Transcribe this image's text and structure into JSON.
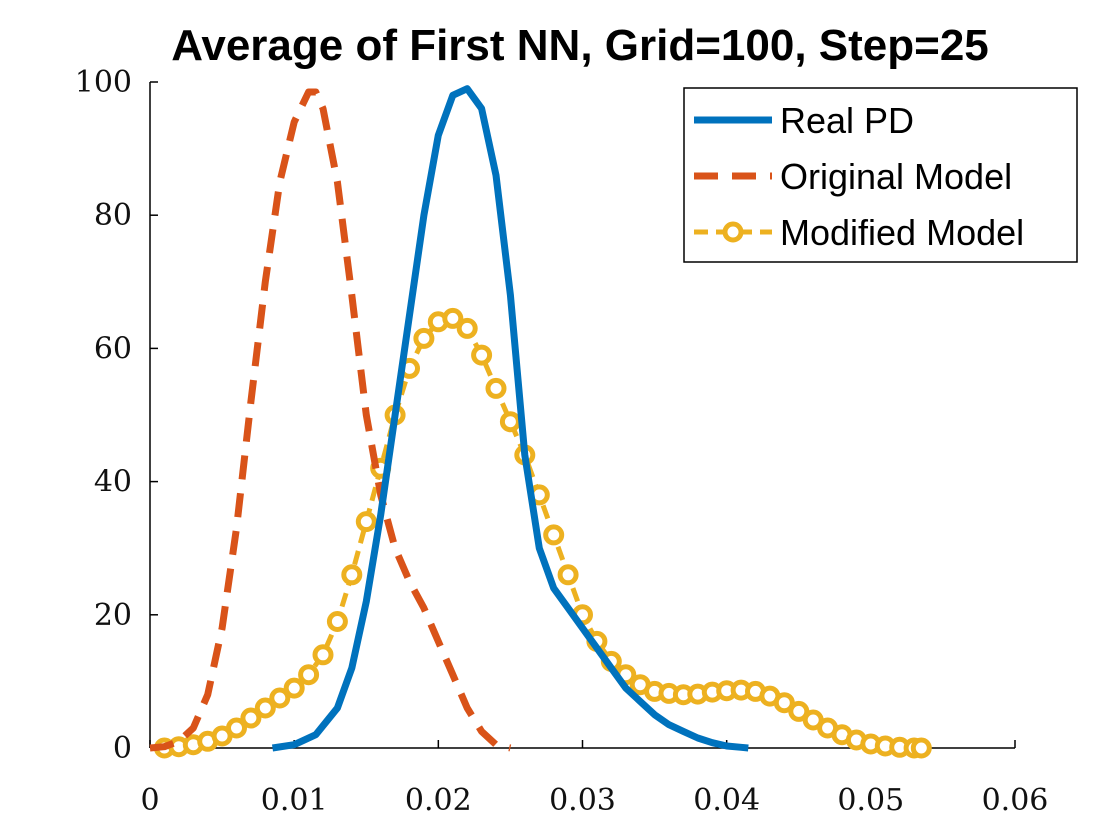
{
  "chart_data": {
    "type": "line",
    "title": "Average of First NN, Grid=100, Step=25",
    "xlabel": "",
    "ylabel": "",
    "xlim": [
      0,
      0.06
    ],
    "ylim": [
      0,
      100
    ],
    "xticks": [
      0,
      0.01,
      0.02,
      0.03,
      0.04,
      0.05,
      0.06
    ],
    "xtick_labels": [
      "0",
      "0.01",
      "0.02",
      "0.03",
      "0.04",
      "0.05",
      "0.06"
    ],
    "yticks": [
      0,
      20,
      40,
      60,
      80,
      100
    ],
    "ytick_labels": [
      "0",
      "20",
      "40",
      "60",
      "80",
      "100"
    ],
    "grid": false,
    "legend_position": "top-right",
    "series": [
      {
        "name": "Real PD",
        "color": "#0072BD",
        "style": "solid",
        "x": [
          0.0085,
          0.01,
          0.0115,
          0.013,
          0.014,
          0.015,
          0.016,
          0.017,
          0.018,
          0.019,
          0.02,
          0.021,
          0.022,
          0.023,
          0.024,
          0.025,
          0.026,
          0.027,
          0.028,
          0.029,
          0.03,
          0.031,
          0.032,
          0.033,
          0.034,
          0.035,
          0.036,
          0.037,
          0.038,
          0.039,
          0.04,
          0.041,
          0.0415
        ],
        "y": [
          0,
          0.5,
          2,
          6,
          12,
          22,
          35,
          50,
          65,
          80,
          92,
          98,
          99,
          96,
          86,
          68,
          44,
          30,
          24,
          21,
          18,
          15,
          12,
          9,
          7,
          5,
          3.5,
          2.5,
          1.5,
          0.8,
          0.3,
          0.1,
          0
        ]
      },
      {
        "name": "Original Model",
        "color": "#D95319",
        "style": "dashed",
        "x": [
          0,
          0.001,
          0.002,
          0.003,
          0.004,
          0.005,
          0.006,
          0.007,
          0.008,
          0.009,
          0.01,
          0.011,
          0.0115,
          0.012,
          0.013,
          0.014,
          0.015,
          0.016,
          0.017,
          0.018,
          0.019,
          0.02,
          0.021,
          0.022,
          0.023,
          0.024,
          0.025
        ],
        "y": [
          0,
          0.2,
          1,
          3,
          8,
          18,
          33,
          52,
          70,
          85,
          94,
          98.5,
          98.5,
          96,
          85,
          68,
          50,
          38,
          30,
          25,
          21,
          16,
          11,
          6,
          2.5,
          0.5,
          0
        ]
      },
      {
        "name": "Modified Model",
        "color": "#EDB120",
        "style": "dashed-circle",
        "x": [
          0.001,
          0.002,
          0.003,
          0.004,
          0.005,
          0.006,
          0.007,
          0.008,
          0.009,
          0.01,
          0.011,
          0.012,
          0.013,
          0.014,
          0.015,
          0.016,
          0.017,
          0.018,
          0.019,
          0.02,
          0.021,
          0.022,
          0.023,
          0.024,
          0.025,
          0.026,
          0.027,
          0.028,
          0.029,
          0.03,
          0.031,
          0.032,
          0.033,
          0.034,
          0.035,
          0.036,
          0.037,
          0.038,
          0.039,
          0.04,
          0.041,
          0.042,
          0.043,
          0.044,
          0.045,
          0.046,
          0.047,
          0.048,
          0.049,
          0.05,
          0.051,
          0.052,
          0.053,
          0.0535
        ],
        "y": [
          0,
          0.2,
          0.5,
          1,
          1.8,
          3,
          4.5,
          6,
          7.5,
          9,
          11,
          14,
          19,
          26,
          34,
          42,
          50,
          57,
          61.5,
          64,
          64.5,
          63,
          59,
          54,
          49,
          44,
          38,
          32,
          26,
          20,
          16,
          13,
          11,
          9.5,
          8.5,
          8.2,
          8.0,
          8.1,
          8.4,
          8.6,
          8.7,
          8.5,
          7.8,
          6.8,
          5.5,
          4.2,
          3,
          2,
          1.2,
          0.6,
          0.3,
          0.1,
          0,
          0
        ]
      }
    ]
  }
}
